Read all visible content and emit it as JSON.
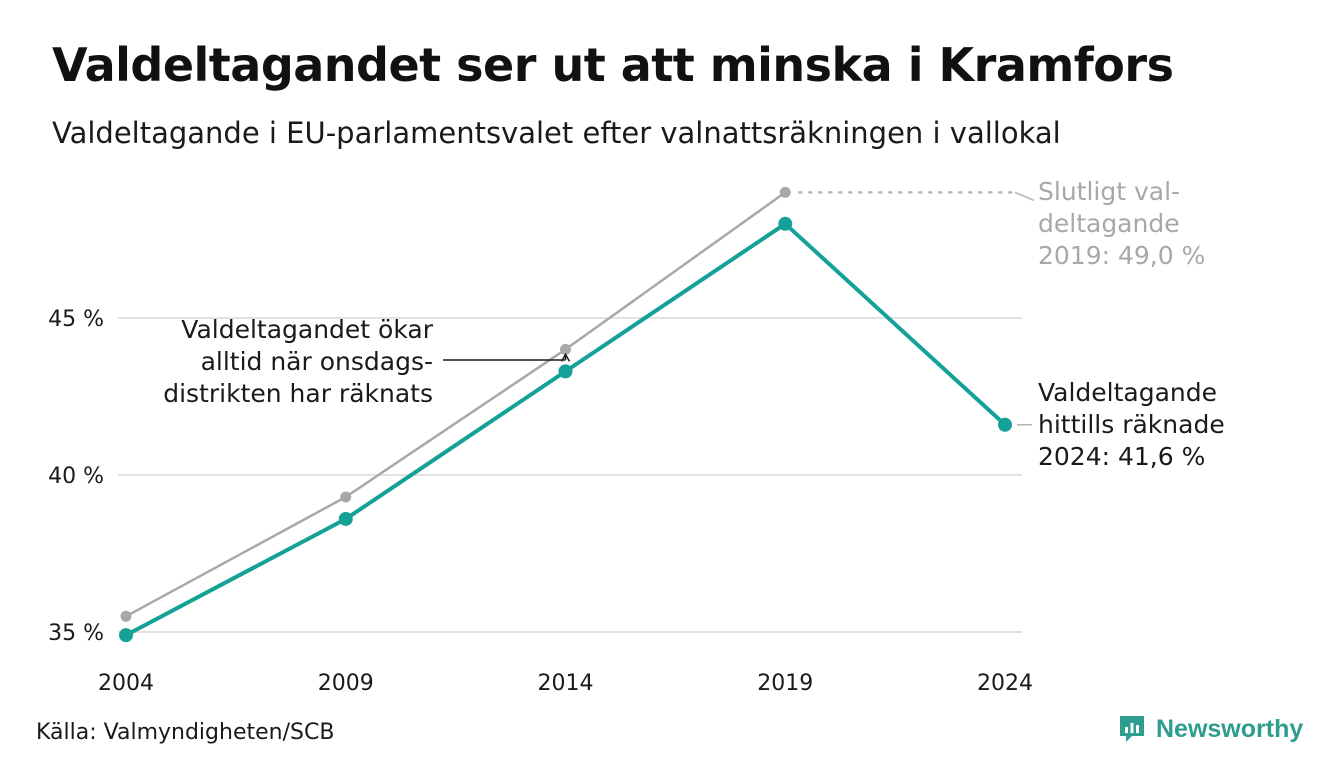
{
  "chart_data": {
    "type": "line",
    "title": "Valdeltagandet ser ut att minska i Kramfors",
    "subtitle": "Valdeltagande i EU-parlamentsvalet efter valnattsräkningen i vallokal",
    "x": [
      "2004",
      "2009",
      "2014",
      "2019",
      "2024"
    ],
    "series": [
      {
        "name": "Valnattsräkning",
        "color": "#14a198",
        "values": [
          34.9,
          38.6,
          43.3,
          48.0,
          41.6
        ]
      },
      {
        "name": "Slutligt valdeltagande",
        "color": "#a8a8a8",
        "values": [
          35.5,
          39.3,
          44.0,
          49.0,
          null
        ]
      }
    ],
    "ylim": [
      35,
      49.5
    ],
    "yticks": [
      {
        "value": 35,
        "label": "35 %"
      },
      {
        "value": 40,
        "label": "40 %"
      },
      {
        "value": 45,
        "label": "45 %"
      }
    ],
    "grid": true,
    "annotations": {
      "final": [
        "Slutligt val-",
        "deltagande",
        "2019: 49,0 %"
      ],
      "current": [
        "Valdeltagande",
        "hittills räknade",
        "2024: 41,6 %"
      ],
      "note": [
        "Valdeltagandet ökar",
        "alltid när onsdags-",
        "distrikten har räknats"
      ]
    }
  },
  "source": "Källa: Valmyndigheten/SCB",
  "brand": "Newsworthy"
}
